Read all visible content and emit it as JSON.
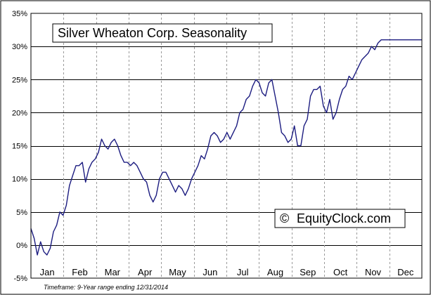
{
  "chart_data": {
    "type": "line",
    "title": "Silver Wheaton Corp. Seasonality",
    "brand": "EquityClock.com",
    "brand_symbol": "©",
    "footnote": "Timeframe: 9-Year range ending 12/31/2014",
    "xlabel": "",
    "ylabel": "",
    "ylim": [
      -5,
      35
    ],
    "y_ticks": [
      -5,
      0,
      5,
      10,
      15,
      20,
      25,
      30,
      35
    ],
    "y_tick_labels": [
      "-5%",
      "0%",
      "5%",
      "10%",
      "15%",
      "20%",
      "25%",
      "30%",
      "35%"
    ],
    "x_unit": "day_of_year",
    "xlim": [
      0,
      365
    ],
    "months": [
      "Jan",
      "Feb",
      "Mar",
      "Apr",
      "May",
      "Jun",
      "Jul",
      "Aug",
      "Sep",
      "Oct",
      "Nov",
      "Dec"
    ],
    "grid": true,
    "legend": "none",
    "line_color": "#1c1c80",
    "series": [
      {
        "x": [
          0,
          3,
          6,
          9,
          12,
          15,
          18,
          21,
          24,
          27,
          30,
          33,
          36,
          39,
          42,
          45,
          48,
          51,
          54,
          57,
          60,
          63,
          66,
          69,
          72,
          75,
          78,
          81,
          84,
          87,
          90,
          93,
          96,
          99,
          102,
          105,
          108,
          111,
          114,
          117,
          120,
          123,
          126,
          129,
          132,
          135,
          138,
          141,
          144,
          147,
          150,
          153,
          156,
          159,
          162,
          165,
          168,
          171,
          174,
          177,
          180,
          183,
          186,
          189,
          192,
          195,
          198,
          201,
          204,
          207,
          210,
          213,
          216,
          219,
          222,
          225,
          228,
          231,
          234,
          237,
          240,
          243,
          246,
          249,
          252,
          255,
          258,
          261,
          264,
          267,
          270,
          273,
          276,
          279,
          282,
          285,
          288,
          291,
          294,
          297,
          300,
          303,
          306,
          309,
          312,
          315,
          318,
          321,
          324,
          327,
          330,
          333,
          336,
          339,
          342,
          345,
          348,
          351,
          354,
          357,
          360,
          363,
          365
        ],
        "values": [
          2.5,
          1.0,
          -1.5,
          0.5,
          -1.0,
          -1.5,
          -0.5,
          2.0,
          3.0,
          5.0,
          4.5,
          6.0,
          9.0,
          10.5,
          12.0,
          12.0,
          12.5,
          9.5,
          11.5,
          12.5,
          13.0,
          14.0,
          16.0,
          15.0,
          14.5,
          15.5,
          16.0,
          15.0,
          13.5,
          12.5,
          12.5,
          12.0,
          12.5,
          12.0,
          11.0,
          10.0,
          9.5,
          7.5,
          6.5,
          7.5,
          10.0,
          11.0,
          11.0,
          10.0,
          9.0,
          8.0,
          9.0,
          8.5,
          7.5,
          8.5,
          10.0,
          11.0,
          12.0,
          13.5,
          13.0,
          14.5,
          16.5,
          17.0,
          16.5,
          15.5,
          16.0,
          17.0,
          16.0,
          17.0,
          18.0,
          20.0,
          20.5,
          22.0,
          22.5,
          24.0,
          25.0,
          24.5,
          23.0,
          22.5,
          24.5,
          25.0,
          22.5,
          20.0,
          17.0,
          16.5,
          15.5,
          16.0,
          18.0,
          15.0,
          15.0,
          18.0,
          19.0,
          22.5,
          23.5,
          23.5,
          24.0,
          21.0,
          20.0,
          22.0,
          19.0,
          20.0,
          22.0,
          23.5,
          24.0,
          25.5,
          25.0,
          26.0,
          27.0,
          28.0,
          28.5,
          29.0,
          30.0,
          29.5,
          30.5,
          31.0,
          31.0,
          31.0,
          31.0,
          31.0,
          31.0,
          31.0,
          31.0,
          31.0,
          31.0,
          31.0,
          31.0,
          31.0,
          31.0
        ]
      }
    ]
  }
}
